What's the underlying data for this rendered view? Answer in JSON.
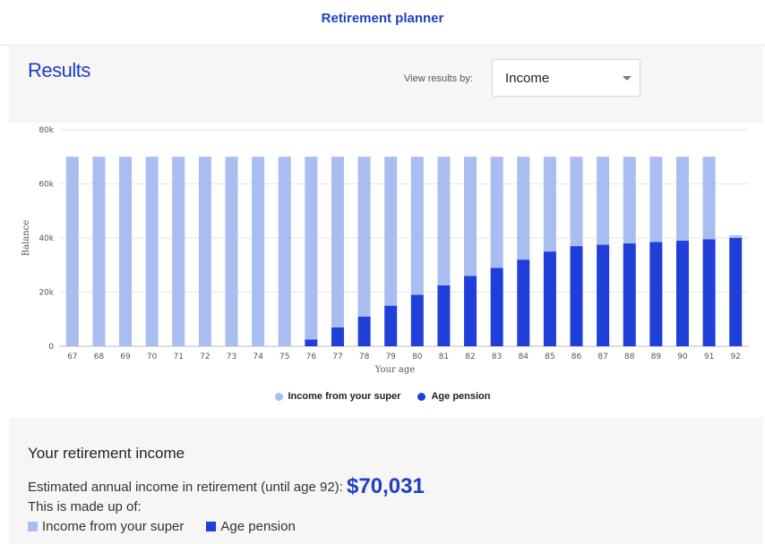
{
  "header": {
    "title": "Retirement planner"
  },
  "results": {
    "title": "Results",
    "view_label": "View results by:",
    "view_value": "Income"
  },
  "colors": {
    "super": "#a9bdf0",
    "pension": "#1f3fd8",
    "accent": "#1f3fc4"
  },
  "chart_data": {
    "type": "bar",
    "stacked": true,
    "categories": [
      "67",
      "68",
      "69",
      "70",
      "71",
      "72",
      "73",
      "74",
      "75",
      "76",
      "77",
      "78",
      "79",
      "80",
      "81",
      "82",
      "83",
      "84",
      "85",
      "86",
      "87",
      "88",
      "89",
      "90",
      "91",
      "92"
    ],
    "series": [
      {
        "name": "Age pension",
        "color": "#1f3fd8",
        "values": [
          0,
          0,
          0,
          0,
          0,
          0,
          0,
          0,
          0,
          2500,
          7000,
          11000,
          15000,
          19000,
          22500,
          26000,
          29000,
          32000,
          35000,
          37000,
          37500,
          38000,
          38500,
          39000,
          39500,
          40000
        ]
      },
      {
        "name": "Income from your super",
        "color": "#a9bdf0",
        "values": [
          70031,
          70031,
          70031,
          70031,
          70031,
          70031,
          70031,
          70031,
          70031,
          67531,
          63031,
          59031,
          55031,
          51031,
          47531,
          44031,
          41031,
          38031,
          35031,
          33031,
          32531,
          32031,
          31531,
          31031,
          30531,
          1000
        ]
      }
    ],
    "xlabel": "Your age",
    "ylabel": "Balance",
    "ylim": [
      0,
      80000
    ],
    "yticks": [
      0,
      20000,
      40000,
      60000,
      80000
    ],
    "ytick_labels": [
      "0",
      "20k",
      "40k",
      "60k",
      "80k"
    ],
    "grid": true,
    "legend_position": "bottom"
  },
  "legend": {
    "super": "Income from your super",
    "pension": "Age pension"
  },
  "summary": {
    "title": "Your retirement income",
    "estimate_text": "Estimated annual income in retirement (until age 92):",
    "amount": "$70,031",
    "made_up_text": "This is made up of:",
    "super_label": "Income from your super",
    "pension_label": "Age pension"
  }
}
